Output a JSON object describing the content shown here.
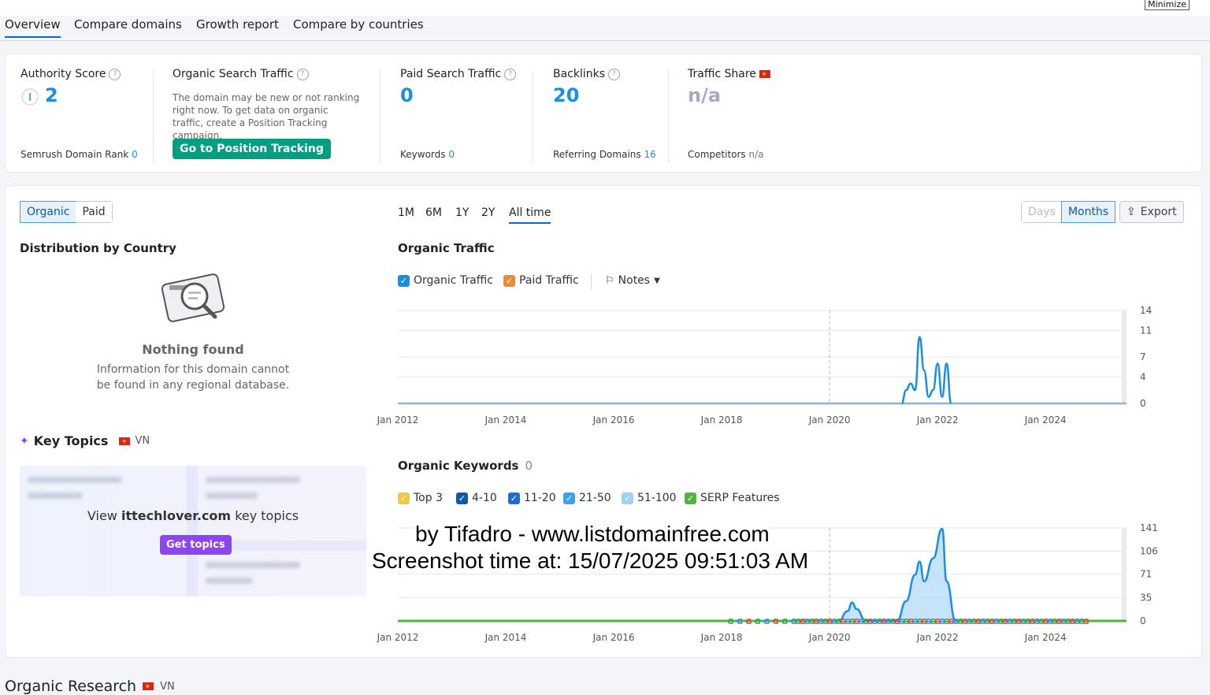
{
  "window": {
    "minimize_label": "Minimize"
  },
  "tabs": [
    {
      "label": "Overview"
    },
    {
      "label": "Compare domains"
    },
    {
      "label": "Growth report"
    },
    {
      "label": "Compare by countries"
    }
  ],
  "metrics": {
    "authority": {
      "label": "Authority Score",
      "value": "2",
      "sub_label": "Semrush Domain Rank",
      "sub_value": "0"
    },
    "organic": {
      "label": "Organic Search Traffic",
      "desc": "The domain may be new or not ranking right now. To get data on organic traffic, create a Position Tracking campaign.",
      "button": "Go to Position Tracking"
    },
    "paid": {
      "label": "Paid Search Traffic",
      "value": "0",
      "sub_label": "Keywords",
      "sub_value": "0"
    },
    "backlinks": {
      "label": "Backlinks",
      "value": "20",
      "sub_label": "Referring Domains",
      "sub_value": "16"
    },
    "traffic_share": {
      "label": "Traffic Share",
      "value": "n/a",
      "sub_label": "Competitors",
      "sub_value": "n/a"
    }
  },
  "toggle": {
    "organic": "Organic",
    "paid": "Paid"
  },
  "periods": [
    "1M",
    "6M",
    "1Y",
    "2Y",
    "All time"
  ],
  "granularity": {
    "days": "Days",
    "months": "Months"
  },
  "export_label": "Export",
  "distribution": {
    "title": "Distribution by Country",
    "empty_title": "Nothing found",
    "empty_desc": "Information for this domain cannot be found in any regional database."
  },
  "key_topics": {
    "title": "Key Topics",
    "country": "VN",
    "view_prefix": "View",
    "domain": "ittechlover.com",
    "view_suffix": "key topics",
    "button": "Get topics"
  },
  "organic_traffic": {
    "title": "Organic Traffic",
    "legend": {
      "organic": "Organic Traffic",
      "paid": "Paid Traffic",
      "notes": "Notes"
    }
  },
  "organic_keywords": {
    "title": "Organic Keywords",
    "count": "0",
    "legend": [
      "Top 3",
      "4-10",
      "11-20",
      "21-50",
      "51-100",
      "SERP Features"
    ]
  },
  "watermark": {
    "line1": "by Tifadro - www.listdomainfree.com",
    "line2": "Screenshot time at: 15/07/2025 09:51:03 AM"
  },
  "organic_research": {
    "title": "Organic Research",
    "country": "VN"
  },
  "colors": {
    "accent": "#006dca",
    "link": "#1a8de6",
    "green": "#009f81",
    "purple": "#8c45f0",
    "organic_line": "#1a8de6",
    "paid_line": "#f08a32"
  },
  "chart_data": [
    {
      "type": "line",
      "title": "Organic Traffic",
      "x_ticks": [
        "Jan 2012",
        "Jan 2014",
        "Jan 2016",
        "Jan 2018",
        "Jan 2020",
        "Jan 2022",
        "Jan 2024"
      ],
      "y_ticks": [
        0,
        4,
        7,
        11,
        14
      ],
      "ylim": [
        0,
        14
      ],
      "series": [
        {
          "name": "Organic Traffic",
          "color": "#1a8de6",
          "points": [
            [
              "2021-05",
              0
            ],
            [
              "2021-06",
              2
            ],
            [
              "2021-07",
              3
            ],
            [
              "2021-08",
              2
            ],
            [
              "2021-09",
              10
            ],
            [
              "2021-10",
              5
            ],
            [
              "2021-11",
              1
            ],
            [
              "2021-12",
              2
            ],
            [
              "2022-01",
              6
            ],
            [
              "2022-02",
              1
            ],
            [
              "2022-03",
              6
            ],
            [
              "2022-04",
              0
            ]
          ]
        },
        {
          "name": "Paid Traffic",
          "color": "#f08a32",
          "points": []
        }
      ]
    },
    {
      "type": "area",
      "title": "Organic Keywords",
      "x_ticks": [
        "Jan 2012",
        "Jan 2014",
        "Jan 2016",
        "Jan 2018",
        "Jan 2020",
        "Jan 2022",
        "Jan 2024"
      ],
      "y_ticks": [
        0,
        35,
        71,
        106,
        141
      ],
      "ylim": [
        0,
        141
      ],
      "series": [
        {
          "name": "Keywords",
          "color": "#1a8de6",
          "points": [
            [
              "2020-03",
              0
            ],
            [
              "2020-05",
              15
            ],
            [
              "2020-06",
              28
            ],
            [
              "2020-07",
              18
            ],
            [
              "2020-09",
              0
            ],
            [
              "2021-04",
              0
            ],
            [
              "2021-06",
              30
            ],
            [
              "2021-08",
              70
            ],
            [
              "2021-09",
              90
            ],
            [
              "2021-10",
              60
            ],
            [
              "2021-12",
              95
            ],
            [
              "2022-02",
              140
            ],
            [
              "2022-03",
              60
            ],
            [
              "2022-05",
              0
            ]
          ]
        }
      ]
    }
  ]
}
